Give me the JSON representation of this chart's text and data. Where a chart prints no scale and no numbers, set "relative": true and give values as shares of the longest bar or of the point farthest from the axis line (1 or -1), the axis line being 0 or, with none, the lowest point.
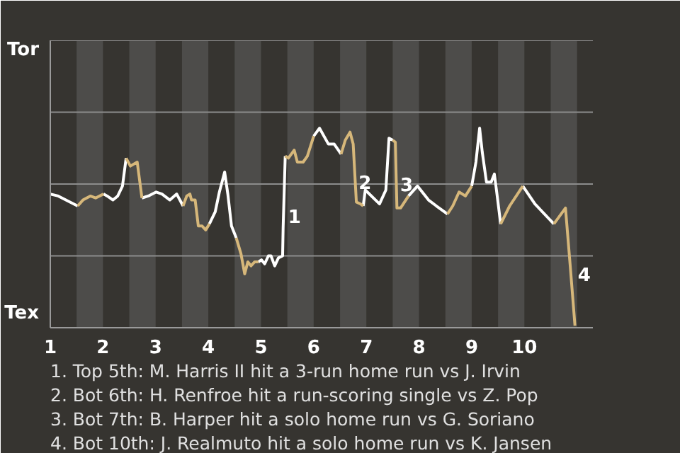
{
  "chart_data": {
    "type": "line",
    "x": [
      1,
      1.15,
      1.52,
      1.62,
      1.76,
      1.86,
      2.01,
      2.08,
      2.19,
      2.28,
      2.37,
      2.44,
      2.52,
      2.65,
      2.74,
      2.86,
      3.01,
      3.12,
      3.27,
      3.4,
      3.52,
      3.59,
      3.65,
      3.68,
      3.75,
      3.81,
      3.88,
      3.95,
      4.02,
      4.13,
      4.21,
      4.31,
      4.37,
      4.44,
      4.53,
      4.62,
      4.69,
      4.75,
      4.81,
      4.88,
      4.95,
      5.01,
      5.07,
      5.14,
      5.19,
      5.26,
      5.33,
      5.41,
      5.42,
      5.46,
      5.52,
      5.63,
      5.69,
      5.8,
      5.88,
      6,
      6.11,
      6.28,
      6.39,
      6.52,
      6.6,
      6.69,
      6.75,
      6.81,
      6.89,
      6.94,
      6.98,
      7.25,
      7.37,
      7.43,
      7.5,
      7.55,
      7.58,
      7.65,
      7.8,
      7.97,
      8.18,
      8.33,
      8.54,
      8.64,
      8.76,
      8.88,
      9,
      9.08,
      9.15,
      9.2,
      9.28,
      9.37,
      9.43,
      9.46,
      9.55,
      9.72,
      9.97,
      10.2,
      10.56,
      10.78,
      10.87,
      10.96
    ],
    "series": [
      {
        "color": "#ffffff",
        "values": [
          0.67,
          0.66,
          0.61,
          null,
          null,
          null,
          0.67,
          0.66,
          0.64,
          0.66,
          0.71,
          0.85,
          null,
          null,
          0.65,
          0.66,
          0.68,
          0.67,
          0.64,
          0.67,
          0.61,
          null,
          null,
          null,
          null,
          null,
          null,
          null,
          0.52,
          0.58,
          0.68,
          0.78,
          0.67,
          0.51,
          0.45,
          null,
          null,
          null,
          null,
          null,
          0.33,
          0.34,
          0.32,
          0.36,
          0.36,
          0.31,
          0.35,
          0.36,
          0.5,
          0.86,
          null,
          null,
          null,
          null,
          null,
          0.96,
          1,
          0.92,
          0.92,
          0.87,
          null,
          null,
          null,
          null,
          null,
          0.61,
          0.69,
          0.62,
          0.69,
          0.95,
          0.94,
          null,
          null,
          null,
          0.66,
          0.71,
          0.64,
          0.61,
          0.57,
          null,
          null,
          null,
          0.71,
          0.83,
          1,
          0.88,
          0.73,
          0.73,
          0.77,
          0.71,
          0.52,
          null,
          0.71,
          0.62,
          0.52,
          null,
          null,
          null
        ]
      },
      {
        "color": "#d6b77a",
        "values": [
          null,
          null,
          0.61,
          0.64,
          0.66,
          0.65,
          0.67,
          null,
          null,
          null,
          null,
          0.85,
          0.81,
          0.83,
          0.65,
          null,
          null,
          null,
          null,
          null,
          0.61,
          0.66,
          0.67,
          0.64,
          0.64,
          0.51,
          0.51,
          0.49,
          0.52,
          null,
          null,
          null,
          null,
          null,
          0.45,
          0.37,
          0.27,
          0.33,
          0.31,
          0.33,
          0.33,
          null,
          null,
          null,
          null,
          null,
          null,
          null,
          null,
          0.86,
          0.85,
          0.89,
          0.83,
          0.83,
          0.86,
          0.96,
          null,
          null,
          null,
          0.87,
          0.94,
          0.98,
          0.92,
          0.63,
          0.62,
          0.61,
          null,
          null,
          null,
          null,
          0.94,
          0.93,
          0.6,
          0.6,
          0.66,
          null,
          null,
          null,
          0.57,
          0.61,
          0.68,
          0.66,
          0.71,
          null,
          null,
          null,
          null,
          null,
          null,
          null,
          0.52,
          0.61,
          0.71,
          null,
          0.52,
          0.6,
          0.31,
          0.01
        ]
      }
    ],
    "relative": true,
    "xlim": [
      1,
      11.3
    ],
    "xticks": [
      1,
      2,
      3,
      4,
      5,
      6,
      7,
      8,
      9,
      10
    ],
    "ref_lines": [
      {
        "axis": "y",
        "value": 0.36,
        "color": "#8c8c8c"
      },
      {
        "axis": "y",
        "value": 0.72,
        "color": "#8c8c8c"
      },
      {
        "axis": "y",
        "value": 1.08,
        "color": "#8c8c8c"
      },
      {
        "axis": "y",
        "value": 1.44,
        "color": "#8c8c8c"
      }
    ],
    "bands": [
      {
        "axis": "x",
        "from": 1.5,
        "to": 2,
        "color": "#4d4c4a"
      },
      {
        "axis": "x",
        "from": 2.5,
        "to": 3,
        "color": "#4d4c4a"
      },
      {
        "axis": "x",
        "from": 3.5,
        "to": 4,
        "color": "#4d4c4a"
      },
      {
        "axis": "x",
        "from": 4.5,
        "to": 5,
        "color": "#4d4c4a"
      },
      {
        "axis": "x",
        "from": 5.5,
        "to": 6,
        "color": "#4d4c4a"
      },
      {
        "axis": "x",
        "from": 6.5,
        "to": 7,
        "color": "#4d4c4a"
      },
      {
        "axis": "x",
        "from": 7.5,
        "to": 8,
        "color": "#4d4c4a"
      },
      {
        "axis": "x",
        "from": 8.5,
        "to": 9,
        "color": "#4d4c4a"
      },
      {
        "axis": "x",
        "from": 9.5,
        "to": 10,
        "color": "#4d4c4a"
      },
      {
        "axis": "x",
        "from": 10.5,
        "to": 11,
        "color": "#4d4c4a"
      }
    ],
    "annotations": [
      "Tor",
      "Tex",
      {
        "text": "1",
        "x": 5.46,
        "y": 0.56
      },
      {
        "text": "2",
        "x": 6.8,
        "y": 0.73
      },
      {
        "text": "3",
        "x": 7.59,
        "y": 0.72
      },
      {
        "text": "4",
        "x": 10.96,
        "y": 0.27
      },
      "1. Top 5th: M. Harris II hit a 3-run home run vs J. Irvin",
      "2. Bot 6th: H. Renfroe hit a run-scoring single vs Z. Pop",
      "3. Bot 7th: B. Harper hit a solo home run vs G. Soriano",
      "4. Bot 10th: J. Realmuto hit a solo home run vs K. Jansen"
    ]
  }
}
